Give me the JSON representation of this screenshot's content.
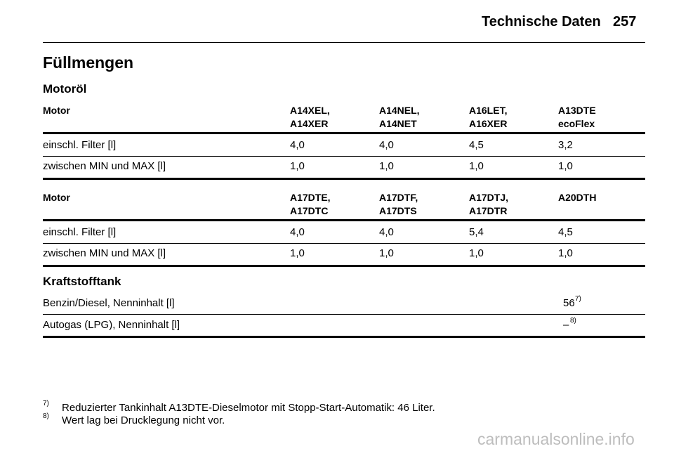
{
  "header": {
    "title": "Technische Daten",
    "page": "257"
  },
  "section_title": "Füllmengen",
  "motor_oil": {
    "heading": "Motoröl",
    "tables": [
      {
        "label": "Motor",
        "columns": [
          [
            "A14XEL,",
            "A14XER"
          ],
          [
            "A14NEL,",
            "A14NET"
          ],
          [
            "A16LET,",
            "A16XER"
          ],
          [
            "A13DTE",
            "ecoFlex"
          ]
        ],
        "rows": [
          [
            "einschl. Filter [l]",
            "4,0",
            "4,0",
            "4,5",
            "3,2"
          ],
          [
            "zwischen MIN und MAX [l]",
            "1,0",
            "1,0",
            "1,0",
            "1,0"
          ]
        ]
      },
      {
        "label": "Motor",
        "columns": [
          [
            "A17DTE,",
            "A17DTC"
          ],
          [
            "A17DTF,",
            "A17DTS"
          ],
          [
            "A17DTJ,",
            "A17DTR"
          ],
          [
            "A20DTH"
          ]
        ],
        "rows": [
          [
            "einschl. Filter [l]",
            "4,0",
            "4,0",
            "5,4",
            "4,5"
          ],
          [
            "zwischen MIN und MAX [l]",
            "1,0",
            "1,0",
            "1,0",
            "1,0"
          ]
        ]
      }
    ]
  },
  "fuel_tank": {
    "heading": "Kraftstofftank",
    "rows": [
      {
        "label": "Benzin/Diesel, Nenninhalt [l]",
        "value": "56",
        "note": "7)"
      },
      {
        "label": "Autogas (LPG), Nenninhalt [l]",
        "value": "–",
        "note": "8)"
      }
    ]
  },
  "footnotes": [
    {
      "mark": "7)",
      "text": "Reduzierter Tankinhalt A13DTE-Dieselmotor mit Stopp-Start-Automatik: 46 Liter."
    },
    {
      "mark": "8)",
      "text": "Wert lag bei Drucklegung nicht vor."
    }
  ],
  "watermark": "carmanualsonline.info"
}
